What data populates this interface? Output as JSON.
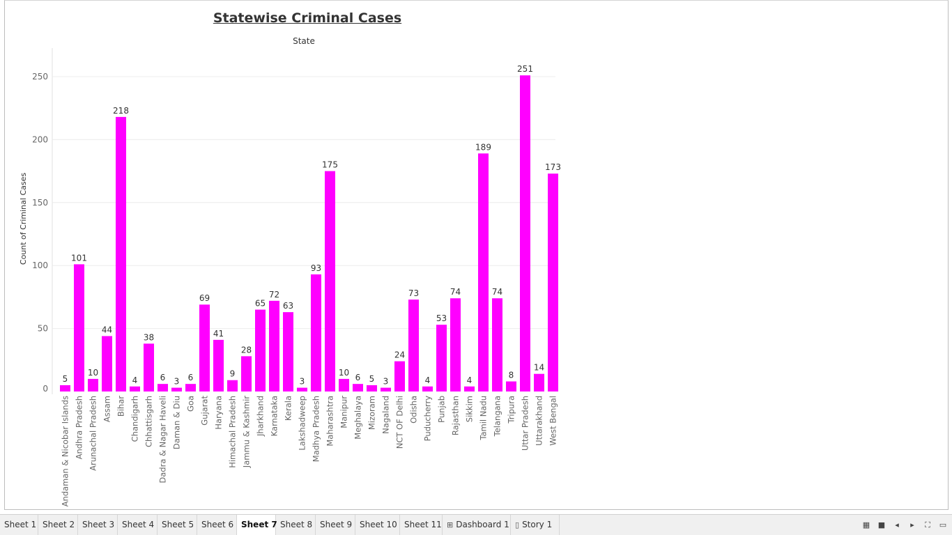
{
  "colors": {
    "bar": "#FF00FF",
    "grid": "#ececec",
    "axis_text": "#666666",
    "label_text": "#333333"
  },
  "chart_data": {
    "type": "bar",
    "title": "Statewise Criminal Cases",
    "header": "State",
    "ylabel": "Count of Criminal Cases",
    "ylim": [
      0,
      260
    ],
    "yticks": [
      0,
      50,
      100,
      150,
      200,
      250
    ],
    "grid": true,
    "categories": [
      "Andaman & Nicobar Islands",
      "Andhra Pradesh",
      "Arunachal Pradesh",
      "Assam",
      "Bihar",
      "Chandigarh",
      "Chhattisgarh",
      "Dadra & Nagar Haveli",
      "Daman & Diu",
      "Goa",
      "Gujarat",
      "Haryana",
      "Himachal Pradesh",
      "Jammu & Kashmir",
      "Jharkhand",
      "Karnataka",
      "Kerala",
      "Lakshadweep",
      "Madhya Pradesh",
      "Maharashtra",
      "Manipur",
      "Meghalaya",
      "Mizoram",
      "Nagaland",
      "NCT OF Delhi",
      "Odisha",
      "Puducherry",
      "Punjab",
      "Rajasthan",
      "Sikkim",
      "Tamil Nadu",
      "Telangana",
      "Tripura",
      "Uttar Pradesh",
      "Uttarakhand",
      "West Bengal"
    ],
    "values": [
      5,
      101,
      10,
      44,
      218,
      4,
      38,
      6,
      3,
      6,
      69,
      41,
      9,
      28,
      65,
      72,
      63,
      3,
      93,
      175,
      10,
      6,
      5,
      3,
      24,
      73,
      4,
      53,
      74,
      4,
      189,
      74,
      8,
      251,
      14,
      173
    ]
  },
  "tabs": [
    {
      "label": "Sheet 1",
      "icon": ""
    },
    {
      "label": "Sheet 2",
      "icon": ""
    },
    {
      "label": "Sheet 3",
      "icon": ""
    },
    {
      "label": "Sheet 4",
      "icon": ""
    },
    {
      "label": "Sheet 5",
      "icon": ""
    },
    {
      "label": "Sheet 6",
      "icon": ""
    },
    {
      "label": "Sheet 7",
      "icon": "",
      "active": true
    },
    {
      "label": "Sheet 8",
      "icon": ""
    },
    {
      "label": "Sheet 9",
      "icon": ""
    },
    {
      "label": "Sheet 10",
      "icon": ""
    },
    {
      "label": "Sheet 11",
      "icon": ""
    },
    {
      "label": "Dashboard 1",
      "icon": "dashboard-icon"
    },
    {
      "label": "Story 1",
      "icon": "story-icon"
    }
  ],
  "controls": [
    "show-sheet-sorter-icon",
    "show-filmstrip-icon",
    "previous-tab-icon",
    "next-tab-icon",
    "fullscreen-icon",
    "presentation-mode-icon"
  ]
}
